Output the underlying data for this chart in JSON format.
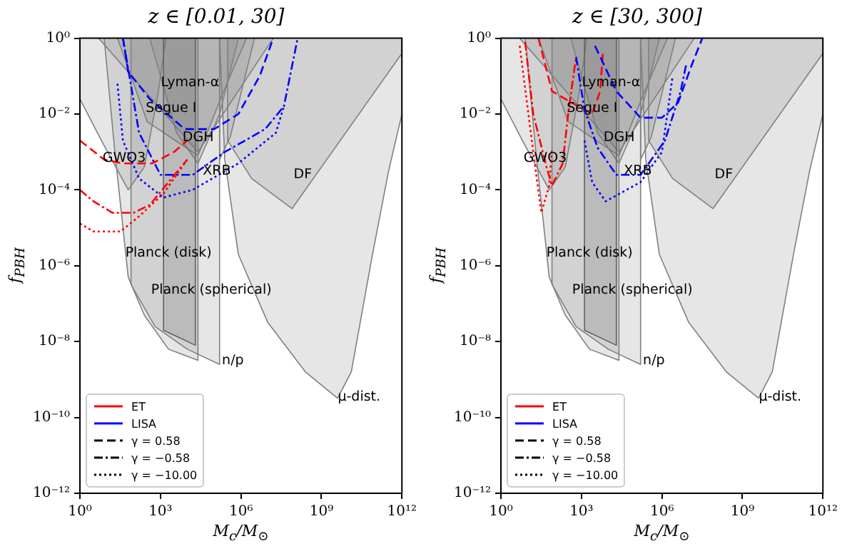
{
  "chart_data": [
    {
      "type": "line",
      "title": "z ∈ [0.01, 30]",
      "xlabel": "M$_{c}$/M$_{⊙}$",
      "ylabel": "f$_{PBH}$",
      "log": "xy",
      "xlim": [
        1,
        1000000000000
      ],
      "ylim": [
        1e-12,
        1
      ],
      "xticks": [
        {
          "value": 1,
          "label": "10⁰"
        },
        {
          "value": 1000,
          "label": "10³"
        },
        {
          "value": 1000000,
          "label": "10⁶"
        },
        {
          "value": 1000000000,
          "label": "10⁹"
        },
        {
          "value": 1000000000000,
          "label": "10¹²"
        }
      ],
      "yticks": [
        {
          "value": 1e-12,
          "label": "10⁻¹²"
        },
        {
          "value": 1e-10,
          "label": "10⁻¹⁰"
        },
        {
          "value": 1e-08,
          "label": "10⁻⁸"
        },
        {
          "value": 1e-06,
          "label": "10⁻⁶"
        },
        {
          "value": 0.0001,
          "label": "10⁻⁴"
        },
        {
          "value": 0.01,
          "label": "10⁻²"
        },
        {
          "value": 1,
          "label": "10⁰"
        }
      ],
      "marker": "none",
      "legend": "bottom left",
      "annotations": [
        "Lyman-α",
        "Segue I",
        "DGH",
        "GWO3",
        "XRB",
        "DF",
        "Planck (disk)",
        "Planck (spherical)",
        "n/p",
        "μ-dist."
      ],
      "series": [
        {
          "type": "area",
          "color": "#808080",
          "x": [
            5,
            25000,
            16000000
          ],
          "values": [
            1,
            0.001,
            1
          ]
        },
        {
          "type": "area",
          "color": "#808080",
          "x": [
            25,
            320,
            25000,
            200000,
            1600000
          ],
          "values": [
            1,
            0.0063,
            0.0008,
            0.032,
            1
          ]
        },
        {
          "type": "area",
          "color": "#808080",
          "x": [
            1,
            1,
            6.3,
            63,
            250,
            800,
            1600
          ],
          "values": [
            1,
            0.025,
            0.002,
            0.0001,
            0.0004,
            0.032,
            1
          ]
        },
        {
          "type": "area",
          "color": "#808080",
          "x": [
            400,
            4000,
            25000,
            160000,
            800000
          ],
          "values": [
            1,
            0.0032,
            0.0005,
            0.01,
            1
          ]
        },
        {
          "type": "area",
          "color": "#808080",
          "x": [
            160000,
            160000,
            400000,
            3200000
          ],
          "values": [
            1,
            0.00063,
            0.0025,
            1
          ]
        },
        {
          "type": "area",
          "color": "#808080",
          "x": [
            320000,
            320000,
            2500000,
            80000000,
            800000000000,
            1000000000000,
            1000000000000
          ],
          "values": [
            1,
            0.002,
            0.0002,
            3.2e-05,
            0.32,
            0.4,
            1
          ]
        },
        {
          "type": "area",
          "color": "#808080",
          "x": [
            8,
            20,
            63,
            250,
            2000,
            25000,
            25000
          ],
          "values": [
            1,
            0.001,
            5e-07,
            5e-08,
            6.3e-09,
            3.2e-09,
            1
          ]
        },
        {
          "type": "area",
          "color": "#5a5a5a",
          "x": [
            1300,
            1300,
            20000,
            20000
          ],
          "values": [
            1,
            2e-08,
            8e-09,
            1
          ]
        },
        {
          "type": "area",
          "color": "#808080",
          "x": [
            80,
            80,
            630,
            10000,
            160000,
            160000
          ],
          "values": [
            1,
            3.2e-07,
            2.5e-08,
            6.3e-09,
            2.5e-09,
            1
          ]
        },
        {
          "type": "area",
          "color": "#808080",
          "x": [
            160000,
            250000,
            800000,
            10000000,
            250000000,
            4000000000,
            13000000000,
            80000000000,
            320000000000,
            1000000000000,
            1000000000000
          ],
          "values": [
            1,
            0.00063,
            2e-06,
            3.2e-08,
            1.6e-09,
            3.2e-10,
            1.6e-09,
            2e-06,
            0.00032,
            0.01,
            1
          ]
        },
        {
          "type": "line",
          "color": "#ff0000",
          "line_style": "dashed",
          "x": [
            1,
            8,
            40,
            500,
            3200,
            10000
          ],
          "values": [
            0.002,
            0.00063,
            0.0005,
            0.0005,
            0.001,
            0.002
          ]
        },
        {
          "type": "line",
          "color": "#ff0000",
          "line_style": "dashdot",
          "x": [
            1,
            3.2,
            16,
            100,
            400,
            2000,
            10000
          ],
          "values": [
            0.0001,
            5e-05,
            2.5e-05,
            2.5e-05,
            4e-05,
            0.00016,
            0.00063
          ]
        },
        {
          "type": "line",
          "color": "#ff0000",
          "line_style": "dotted",
          "x": [
            1,
            3.2,
            32,
            160,
            1300,
            10000
          ],
          "values": [
            1.3e-05,
            8e-06,
            8e-06,
            2e-05,
            8e-05,
            0.00063
          ]
        },
        {
          "type": "line",
          "color": "#0000ff",
          "line_style": "dashed",
          "x": [
            40,
            63,
            400,
            8000,
            100000,
            800000,
            5000000,
            16000000
          ],
          "values": [
            1,
            0.13,
            0.025,
            0.004,
            0.004,
            0.01,
            0.1,
            1
          ]
        },
        {
          "type": "line",
          "color": "#0000ff",
          "line_style": "dashdot",
          "x": [
            40,
            160,
            1000,
            16000,
            250000,
            8000000,
            40000000,
            130000000
          ],
          "values": [
            1,
            0.0032,
            0.00025,
            0.00025,
            0.001,
            0.004,
            0.016,
            1
          ]
        },
        {
          "type": "line",
          "color": "#0000ff",
          "line_style": "dotted",
          "x": [
            25,
            40,
            160,
            1300,
            16000,
            800000,
            20000000,
            40000000
          ],
          "values": [
            0.063,
            0.002,
            0.0002,
            6.3e-05,
            0.0001,
            0.0005,
            0.0032,
            0.016
          ]
        },
        {
          "type": "line",
          "name": "ET",
          "color": "#ff0000",
          "line_style": "solid"
        },
        {
          "type": "line",
          "name": "LISA",
          "color": "#0000ff",
          "line_style": "solid"
        },
        {
          "type": "line",
          "name": "γ = 0.58",
          "color": "#000000",
          "line_style": "dashed"
        },
        {
          "type": "line",
          "name": "γ = −0.58",
          "color": "#000000",
          "line_style": "dashdot"
        },
        {
          "type": "line",
          "name": "γ = −10.00",
          "color": "#000000",
          "line_style": "dotted"
        }
      ]
    },
    {
      "type": "line",
      "title": "z ∈ [30, 300]",
      "xlabel": "M$_{c}$/M$_{⊙}$",
      "ylabel": "f$_{PBH}$",
      "log": "xy",
      "xlim": [
        1,
        1000000000000
      ],
      "ylim": [
        1e-12,
        1
      ],
      "xticks": [
        {
          "value": 1,
          "label": "10⁰"
        },
        {
          "value": 1000,
          "label": "10³"
        },
        {
          "value": 1000000,
          "label": "10⁶"
        },
        {
          "value": 1000000000,
          "label": "10⁹"
        },
        {
          "value": 1000000000000,
          "label": "10¹²"
        }
      ],
      "yticks": [
        {
          "value": 1e-12,
          "label": "10⁻¹²"
        },
        {
          "value": 1e-10,
          "label": "10⁻¹⁰"
        },
        {
          "value": 1e-08,
          "label": "10⁻⁸"
        },
        {
          "value": 1e-06,
          "label": "10⁻⁶"
        },
        {
          "value": 0.0001,
          "label": "10⁻⁴"
        },
        {
          "value": 0.01,
          "label": "10⁻²"
        },
        {
          "value": 1,
          "label": "10⁰"
        }
      ],
      "marker": "none",
      "legend": "bottom left",
      "annotations": [
        "Lyman-α",
        "Segue I",
        "DGH",
        "GWO3",
        "XRB",
        "DF",
        "Planck (disk)",
        "Planck (spherical)",
        "n/p",
        "μ-dist."
      ],
      "series": [
        {
          "type": "area",
          "color": "#808080",
          "x": [
            5,
            25000,
            16000000
          ],
          "values": [
            1,
            0.001,
            1
          ]
        },
        {
          "type": "area",
          "color": "#808080",
          "x": [
            25,
            320,
            25000,
            200000,
            1600000
          ],
          "values": [
            1,
            0.0063,
            0.0008,
            0.032,
            1
          ]
        },
        {
          "type": "area",
          "color": "#808080",
          "x": [
            1,
            1,
            6.3,
            63,
            250,
            800,
            1600
          ],
          "values": [
            1,
            0.025,
            0.002,
            0.0001,
            0.0004,
            0.032,
            1
          ]
        },
        {
          "type": "area",
          "color": "#808080",
          "x": [
            400,
            4000,
            25000,
            160000,
            800000
          ],
          "values": [
            1,
            0.0032,
            0.0005,
            0.01,
            1
          ]
        },
        {
          "type": "area",
          "color": "#808080",
          "x": [
            160000,
            160000,
            400000,
            3200000
          ],
          "values": [
            1,
            0.00063,
            0.0025,
            1
          ]
        },
        {
          "type": "area",
          "color": "#808080",
          "x": [
            320000,
            320000,
            2500000,
            80000000,
            800000000000,
            1000000000000,
            1000000000000
          ],
          "values": [
            1,
            0.002,
            0.0002,
            3.2e-05,
            0.32,
            0.4,
            1
          ]
        },
        {
          "type": "area",
          "color": "#808080",
          "x": [
            8,
            20,
            63,
            250,
            2000,
            25000,
            25000
          ],
          "values": [
            1,
            0.001,
            5e-07,
            5e-08,
            6.3e-09,
            3.2e-09,
            1
          ]
        },
        {
          "type": "area",
          "color": "#5a5a5a",
          "x": [
            1300,
            1300,
            20000,
            20000
          ],
          "values": [
            1,
            2e-08,
            8e-09,
            1
          ]
        },
        {
          "type": "area",
          "color": "#808080",
          "x": [
            80,
            80,
            630,
            10000,
            160000,
            160000
          ],
          "values": [
            1,
            3.2e-07,
            2.5e-08,
            6.3e-09,
            2.5e-09,
            1
          ]
        },
        {
          "type": "area",
          "color": "#808080",
          "x": [
            160000,
            250000,
            800000,
            10000000,
            250000000,
            4000000000,
            13000000000,
            80000000000,
            320000000000,
            1000000000000,
            1000000000000
          ],
          "values": [
            1,
            0.00063,
            2e-06,
            3.2e-08,
            1.6e-09,
            3.2e-10,
            1.6e-09,
            2e-06,
            0.00032,
            0.01,
            1
          ]
        },
        {
          "type": "line",
          "color": "#ff0000",
          "line_style": "dashed",
          "x": [
            25,
            80,
            250,
            2500,
            5000,
            6300
          ],
          "values": [
            1,
            0.04,
            0.025,
            0.01,
            0.04,
            0.4
          ]
        },
        {
          "type": "line",
          "color": "#ff0000",
          "line_style": "dashdot",
          "x": [
            8,
            16,
            50,
            80,
            200,
            320,
            630
          ],
          "values": [
            0.8,
            0.01,
            0.0004,
            0.00013,
            0.0005,
            0.01,
            0.32
          ]
        },
        {
          "type": "line",
          "color": "#ff0000",
          "line_style": "dotted",
          "x": [
            5,
            16,
            32,
            63,
            80
          ],
          "values": [
            0.63,
            0.001,
            2.5e-05,
            0.00013,
            0.0013
          ]
        },
        {
          "type": "line",
          "color": "#0000ff",
          "line_style": "dashed",
          "x": [
            3200,
            20000,
            160000,
            1000000,
            4000000,
            13000000,
            32000000
          ],
          "values": [
            0.63,
            0.04,
            0.008,
            0.008,
            0.02,
            0.2,
            1
          ]
        },
        {
          "type": "line",
          "color": "#0000ff",
          "line_style": "dashdot",
          "x": [
            630,
            1300,
            4000,
            20000,
            160000,
            1300000,
            5000000,
            8000000
          ],
          "values": [
            0.32,
            0.013,
            0.0013,
            0.00025,
            0.00025,
            0.002,
            0.04,
            0.2
          ]
        },
        {
          "type": "line",
          "color": "#0000ff",
          "line_style": "dotted",
          "x": [
            1300,
            2500,
            8000,
            160000,
            1000000,
            2500000
          ],
          "values": [
            0.002,
            0.00016,
            5e-05,
            0.00016,
            0.001,
            0.1
          ]
        },
        {
          "type": "line",
          "name": "ET",
          "color": "#ff0000",
          "line_style": "solid"
        },
        {
          "type": "line",
          "name": "LISA",
          "color": "#0000ff",
          "line_style": "solid"
        },
        {
          "type": "line",
          "name": "γ = 0.58",
          "color": "#000000",
          "line_style": "dashed"
        },
        {
          "type": "line",
          "name": "γ = −0.58",
          "color": "#000000",
          "line_style": "dashdot"
        },
        {
          "type": "line",
          "name": "γ = −10.00",
          "color": "#000000",
          "line_style": "dotted"
        }
      ]
    }
  ]
}
